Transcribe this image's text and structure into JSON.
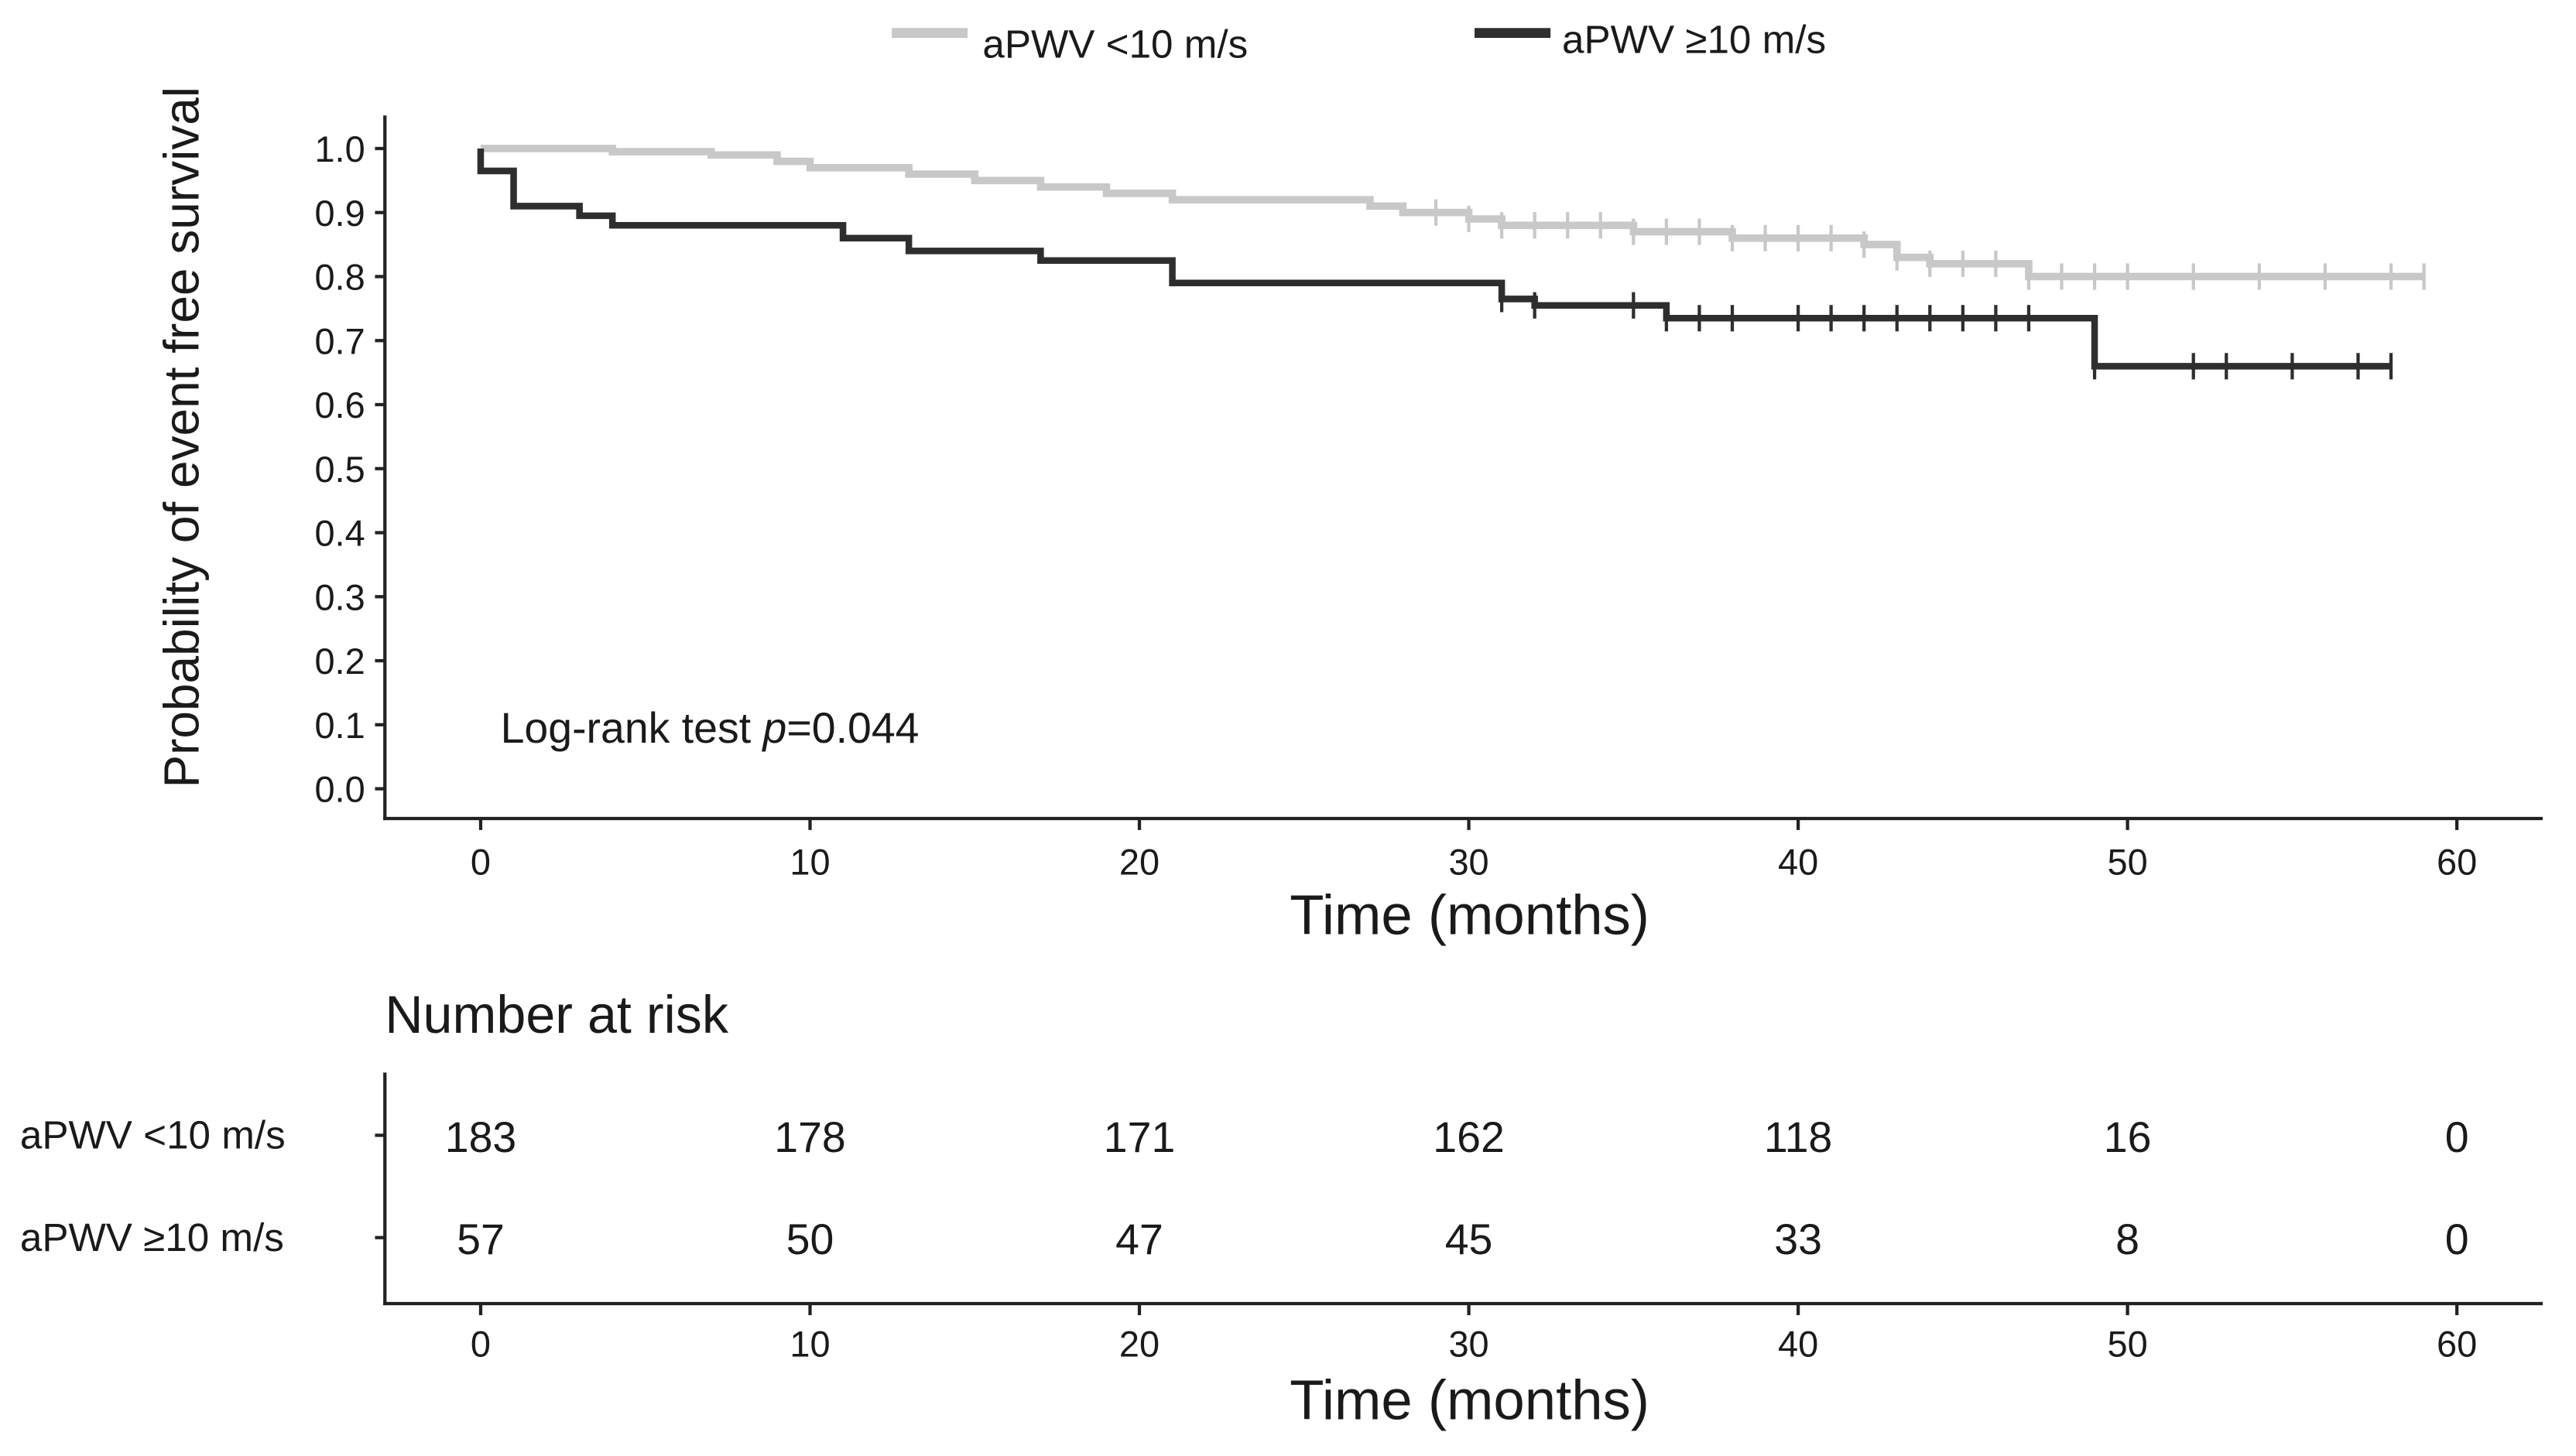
{
  "chart_data": {
    "type": "line",
    "subtype": "kaplan-meier step",
    "ylabel": "Probability of event free survival",
    "xlabel": "Time (months)",
    "xlim": [
      0,
      60
    ],
    "ylim": [
      0,
      1.0
    ],
    "xticks": [
      0,
      10,
      20,
      30,
      40,
      50,
      60
    ],
    "yticks": [
      "0.0",
      "0.1",
      "0.2",
      "0.3",
      "0.4",
      "0.5",
      "0.6",
      "0.7",
      "0.8",
      "0.9",
      "1.0"
    ],
    "legend_position": "top",
    "annotation": {
      "prefix": "Log-rank test ",
      "italic": "p",
      "suffix": "=0.044"
    },
    "series": [
      {
        "name": "aPWV <10 m/s",
        "color": "#c8c8c8",
        "steps": [
          [
            0,
            1.0
          ],
          [
            4,
            0.995
          ],
          [
            7,
            0.99
          ],
          [
            9,
            0.98
          ],
          [
            10,
            0.97
          ],
          [
            13,
            0.96
          ],
          [
            15,
            0.95
          ],
          [
            17,
            0.94
          ],
          [
            19,
            0.93
          ],
          [
            21,
            0.92
          ],
          [
            27,
            0.91
          ],
          [
            28,
            0.9
          ],
          [
            30,
            0.89
          ],
          [
            31,
            0.88
          ],
          [
            35,
            0.87
          ],
          [
            38,
            0.86
          ],
          [
            42,
            0.85
          ],
          [
            43,
            0.83
          ],
          [
            44,
            0.82
          ],
          [
            47,
            0.8
          ],
          [
            59,
            0.8
          ]
        ],
        "censored": [
          29,
          30,
          31,
          32,
          33,
          34,
          35,
          36,
          37,
          38,
          39,
          40,
          41,
          42,
          43,
          44,
          45,
          46,
          47,
          48,
          49,
          50,
          52,
          54,
          56,
          58,
          59
        ]
      },
      {
        "name": "aPWV ≥10 m/s",
        "color": "#2e2e2e",
        "steps": [
          [
            0,
            0.965
          ],
          [
            1,
            0.91
          ],
          [
            3,
            0.895
          ],
          [
            4,
            0.88
          ],
          [
            11,
            0.86
          ],
          [
            13,
            0.84
          ],
          [
            17,
            0.825
          ],
          [
            21,
            0.79
          ],
          [
            31,
            0.765
          ],
          [
            32,
            0.755
          ],
          [
            36,
            0.735
          ],
          [
            49,
            0.66
          ],
          [
            58,
            0.66
          ]
        ],
        "censored": [
          31,
          32,
          35,
          36,
          37,
          38,
          40,
          41,
          42,
          43,
          44,
          45,
          46,
          47,
          49,
          52,
          53,
          55,
          57,
          58
        ]
      }
    ],
    "risk_table": {
      "title": "Number at risk",
      "xlabel": "Time (months)",
      "times": [
        0,
        10,
        20,
        30,
        40,
        50,
        60
      ],
      "rows": [
        {
          "label": "aPWV <10 m/s",
          "values": [
            183,
            178,
            171,
            162,
            118,
            16,
            0
          ]
        },
        {
          "label": "aPWV ≥10 m/s",
          "values": [
            57,
            50,
            47,
            45,
            33,
            8,
            0
          ]
        }
      ]
    }
  }
}
